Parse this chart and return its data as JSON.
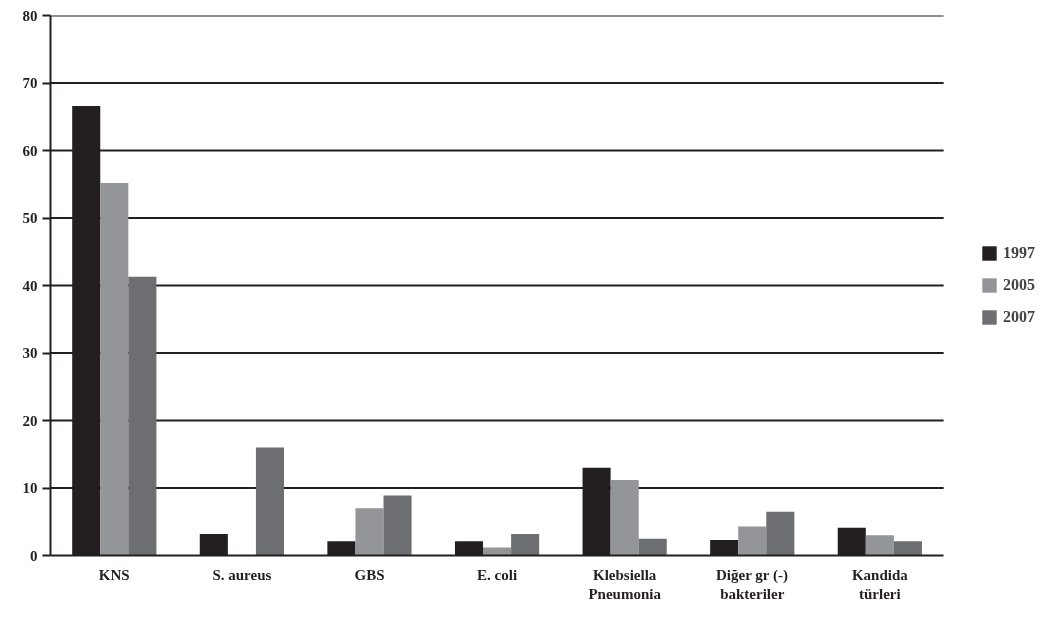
{
  "chart_data": {
    "type": "bar",
    "categories": [
      "KNS",
      "S. aureus",
      "GBS",
      "E. coli",
      "Klebsiella\nPneumonia",
      "Diğer gr (-)\nbakteriler",
      "Kandida\ntürleri"
    ],
    "series": [
      {
        "name": "1997",
        "color": "#231f20",
        "values": [
          66.6,
          3.2,
          2.1,
          2.1,
          13.0,
          2.3,
          4.1
        ]
      },
      {
        "name": "2005",
        "color": "#939598",
        "values": [
          55.2,
          0,
          7.0,
          1.2,
          11.2,
          4.3,
          3.0
        ]
      },
      {
        "name": "2007",
        "color": "#6d6e71",
        "values": [
          41.3,
          16.0,
          8.9,
          3.2,
          2.5,
          6.5,
          2.1
        ]
      }
    ],
    "ylim": [
      0,
      80
    ],
    "yticks": [
      0,
      10,
      20,
      30,
      40,
      50,
      60,
      70,
      80
    ],
    "grid": "y",
    "legend": "right"
  }
}
